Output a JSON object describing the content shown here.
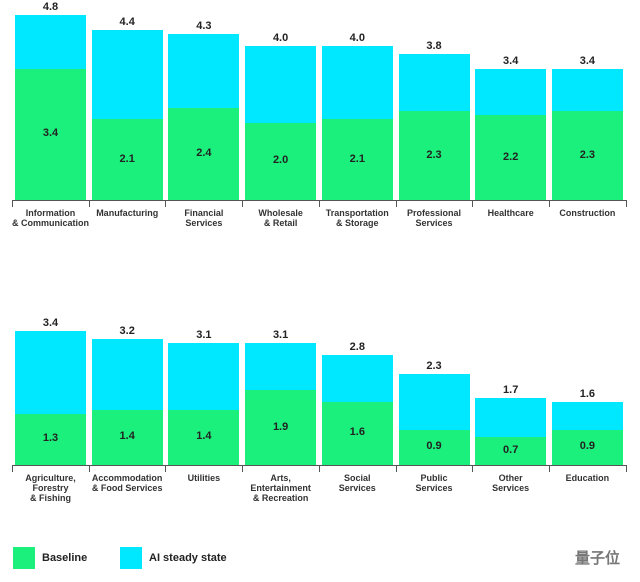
{
  "chart_data": [
    {
      "type": "bar",
      "overlap": true,
      "categories": [
        "Information\n& Communication",
        "Manufacturing",
        "Financial\nServices",
        "Wholesale\n& Retail",
        "Transportation\n& Storage",
        "Professional\nServices",
        "Healthcare",
        "Construction"
      ],
      "series": [
        {
          "name": "AI steady state",
          "color": "#00e8ff",
          "values": [
            4.8,
            4.4,
            4.3,
            4.0,
            4.0,
            3.8,
            3.4,
            3.4
          ],
          "value_labels": [
            "4.8",
            "4.4",
            "4.3",
            "4.0",
            "4.0",
            "3.8",
            "3.4",
            "3.4"
          ]
        },
        {
          "name": "Baseline",
          "color": "#1cf07c",
          "values": [
            3.4,
            2.1,
            2.4,
            2.0,
            2.1,
            2.3,
            2.2,
            2.3
          ],
          "value_labels": [
            "3.4",
            "2.1",
            "2.4",
            "2.0",
            "2.1",
            "2.3",
            "2.2",
            "2.3"
          ]
        }
      ],
      "ylim": [
        0,
        4.8
      ]
    },
    {
      "type": "bar",
      "overlap": true,
      "categories": [
        "Agriculture,\nForestry\n& Fishing",
        "Accommodation\n& Food Services",
        "Utilities",
        "Arts,\nEntertainment\n& Recreation",
        "Social\nServices",
        "Public\nServices",
        "Other\nServices",
        "Education"
      ],
      "series": [
        {
          "color": "#00e8ff",
          "values": [
            3.4,
            3.2,
            3.1,
            3.1,
            2.8,
            2.3,
            1.7,
            1.6
          ],
          "value_labels": [
            "3.4",
            "3.2",
            "3.1",
            "3.1",
            "2.8",
            "2.3",
            "1.7",
            "1.6"
          ]
        },
        {
          "color": "#1cf07c",
          "values": [
            1.3,
            1.4,
            1.4,
            1.9,
            1.6,
            0.9,
            0.7,
            0.9
          ],
          "value_labels": [
            "1.3",
            "1.4",
            "1.4",
            "1.9",
            "1.6",
            "0.9",
            "0.7",
            "0.9"
          ]
        }
      ],
      "ylim": [
        0,
        3.4
      ]
    }
  ],
  "watermark": "量子位"
}
